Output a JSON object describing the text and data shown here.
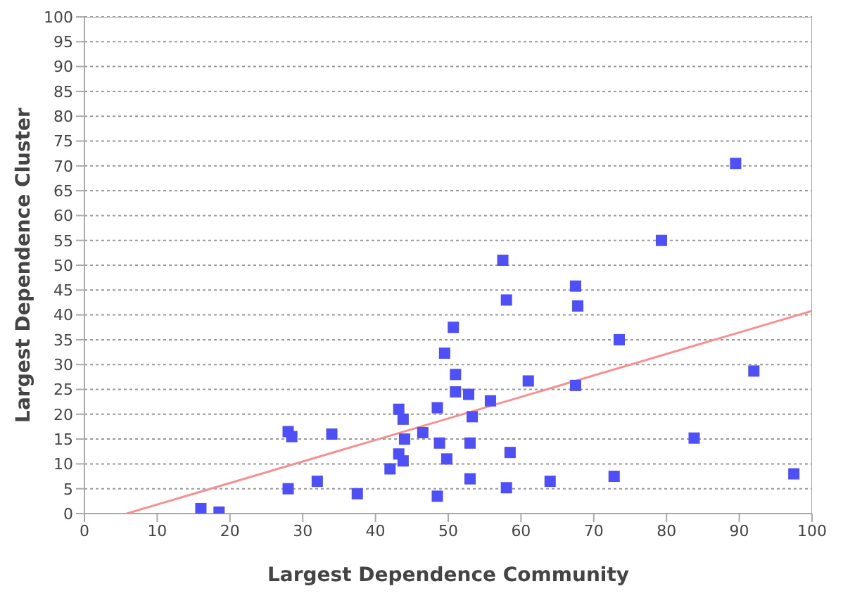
{
  "chart_data": {
    "type": "scatter",
    "xlabel": "Largest Dependence Community",
    "ylabel": "Largest Dependence Cluster",
    "xlim": [
      0,
      100
    ],
    "ylim": [
      0,
      100
    ],
    "xticks": [
      0,
      10,
      20,
      30,
      40,
      50,
      60,
      70,
      80,
      90,
      100
    ],
    "yticks": [
      0,
      5,
      10,
      15,
      20,
      25,
      30,
      35,
      40,
      45,
      50,
      55,
      60,
      65,
      70,
      75,
      80,
      85,
      90,
      95,
      100
    ],
    "grid": "y",
    "marker": "square",
    "series": [
      {
        "color": "#4f4ff7",
        "x": [
          16,
          18.5,
          28,
          28.5,
          28,
          32,
          34,
          37.5,
          42,
          43.2,
          43.2,
          43.8,
          43.8,
          44,
          46.5,
          48.5,
          48.8,
          48.5,
          49.5,
          49.8,
          50.7,
          51,
          51,
          52.8,
          53,
          53.3,
          53,
          55.8,
          57.5,
          58,
          58,
          58.5,
          61,
          64,
          67.5,
          67.8,
          67.5,
          72.8,
          73.5,
          79.3,
          83.8,
          89.5,
          92,
          97.5
        ],
        "values": [
          1,
          0.3,
          16.5,
          15.5,
          5,
          6.5,
          16,
          4,
          9,
          21,
          12,
          10.6,
          19,
          15,
          16.3,
          21.3,
          14.2,
          3.5,
          32.3,
          11,
          37.5,
          28,
          24.5,
          24,
          14.2,
          19.5,
          7,
          22.7,
          51,
          43,
          5.2,
          12.3,
          26.7,
          6.5,
          45.8,
          41.8,
          25.8,
          7.5,
          35,
          55,
          15.2,
          70.5,
          28.7,
          8
        ]
      },
      {
        "type": "line",
        "marker": "none",
        "color": "#f79090",
        "x": [
          5.8,
          100
        ],
        "values": [
          0,
          40.8
        ]
      }
    ]
  }
}
